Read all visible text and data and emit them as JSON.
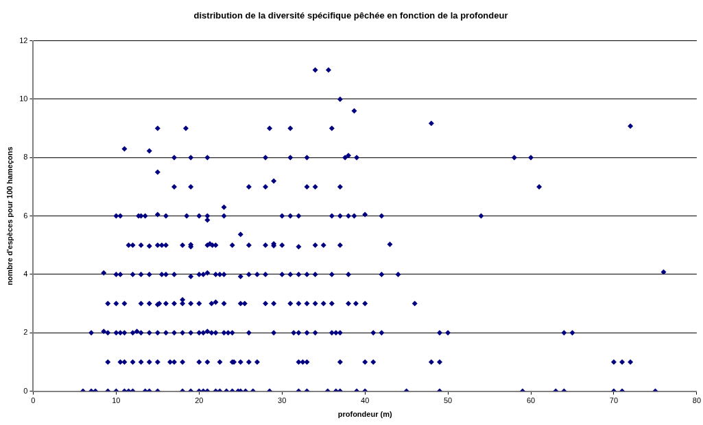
{
  "chart_data": {
    "type": "scatter",
    "title": "distribution de la diversité spécifique pêchée en fonction de la profondeur",
    "xlabel": "profondeur (m)",
    "ylabel": "nombre d'espèces pour 100 hameçons",
    "xlim": [
      0,
      80
    ],
    "xticks": [
      0,
      10,
      20,
      30,
      40,
      50,
      60,
      70,
      80
    ],
    "ylim": [
      0,
      12
    ],
    "yticks": [
      0,
      2,
      4,
      6,
      8,
      10,
      12
    ],
    "grid": "y",
    "marker": "diamond",
    "legend": false,
    "series": [
      {
        "color": "#000080",
        "x": [
          6,
          7,
          7.5,
          9,
          10,
          11,
          11.5,
          12,
          13.5,
          14,
          15,
          18,
          19,
          20,
          20.5,
          21,
          22,
          22.5,
          23.3,
          24,
          24.7,
          25,
          25.6,
          26.5,
          28.5,
          32,
          33,
          35.5,
          36.5,
          37,
          39,
          40,
          45,
          49,
          59,
          63,
          64,
          70,
          71,
          75
        ],
        "values": [
          0,
          0,
          0,
          0,
          0,
          0,
          0,
          0,
          0,
          0,
          0,
          0,
          0,
          0,
          0,
          0,
          0,
          0,
          0,
          0,
          0,
          0,
          0,
          0,
          0,
          0,
          0,
          0,
          0,
          0,
          0,
          0,
          0,
          0,
          0,
          0,
          0,
          0,
          0,
          0
        ]
      },
      {
        "color": "#000080",
        "x": [
          9,
          10.5,
          11,
          12,
          13,
          14,
          15,
          16.5,
          17,
          18,
          20,
          21,
          22.5,
          24,
          24.2,
          25,
          26,
          27,
          32,
          32.5,
          33,
          37,
          40,
          41,
          48,
          49,
          70,
          71,
          72
        ],
        "values": [
          1,
          1,
          1,
          1,
          1,
          1,
          1,
          1,
          1,
          1,
          1,
          1,
          1,
          1,
          1,
          1,
          1,
          1,
          1,
          1,
          1,
          1,
          1,
          1,
          1,
          1,
          1,
          1,
          1
        ]
      },
      {
        "color": "#000080",
        "x": [
          7,
          8.5,
          9,
          10,
          10.5,
          11,
          12,
          12.5,
          13,
          14,
          15,
          16,
          17,
          18,
          19,
          20,
          20.5,
          21,
          21.5,
          22,
          23,
          23.5,
          24,
          26,
          29,
          31.4,
          32,
          33,
          34,
          36,
          36.5,
          37,
          41,
          42,
          49,
          50,
          64,
          65
        ],
        "values": [
          2,
          2.05,
          2,
          2,
          2,
          2,
          2,
          2.05,
          2,
          2,
          2,
          2,
          2,
          2,
          2,
          2,
          2,
          2.05,
          2,
          2,
          2,
          2,
          2,
          2,
          2,
          2,
          2,
          2,
          2,
          2,
          2,
          2,
          2,
          2,
          2,
          2,
          2,
          2
        ]
      },
      {
        "color": "#000080",
        "x": [
          9,
          10,
          11,
          13,
          14,
          15,
          15.2,
          16,
          17,
          18,
          18,
          19,
          20,
          21.5,
          22,
          23,
          25,
          25.5,
          28,
          29,
          31,
          32,
          33,
          34,
          35,
          36,
          38,
          38.9,
          40,
          46
        ],
        "values": [
          3,
          3,
          3,
          3,
          3,
          2.97,
          3,
          3,
          3,
          3.13,
          3,
          3,
          3,
          3,
          3.05,
          3,
          3,
          3,
          3,
          3,
          3,
          3,
          3,
          3,
          3,
          3,
          3,
          3,
          3,
          3
        ]
      },
      {
        "color": "#000080",
        "x": [
          8.5,
          10,
          10.5,
          12,
          13,
          14,
          15.5,
          16,
          17,
          19,
          20,
          20.5,
          21,
          22,
          22.5,
          23,
          25,
          26,
          27,
          28,
          30,
          31,
          32,
          33,
          34,
          36,
          38,
          42,
          44,
          76
        ],
        "values": [
          4.05,
          4,
          4,
          4,
          4,
          4,
          4,
          4,
          4,
          3.93,
          4,
          4,
          4.05,
          4,
          4,
          4,
          3.93,
          4,
          4,
          4,
          4,
          4,
          4,
          4,
          4,
          4,
          4,
          4,
          4,
          4.08
        ]
      },
      {
        "color": "#000080",
        "x": [
          11.5,
          12,
          13,
          14,
          15,
          15.5,
          16,
          18,
          19,
          19,
          21.3,
          21,
          21.6,
          22,
          24,
          25,
          26,
          28,
          29,
          29,
          30,
          32,
          34,
          35,
          37,
          43
        ],
        "values": [
          5,
          5,
          5,
          4.97,
          5,
          5,
          5,
          5,
          4.95,
          5.02,
          5.05,
          5,
          5,
          5,
          5,
          5.37,
          5,
          5,
          5.05,
          4.98,
          5,
          4.95,
          5,
          5,
          5,
          5.03
        ]
      },
      {
        "color": "#000080",
        "x": [
          10,
          10.5,
          12.7,
          13,
          13.5,
          15,
          16,
          18.5,
          20,
          21,
          21,
          23,
          23,
          30,
          31,
          32,
          36,
          37,
          38,
          38.7,
          40,
          42,
          54
        ],
        "values": [
          6,
          6,
          6,
          6,
          6,
          6.05,
          6,
          6,
          6,
          6,
          5.86,
          6,
          6.3,
          6,
          6,
          6,
          6,
          6,
          6,
          6,
          6.05,
          6,
          6
        ]
      },
      {
        "color": "#000080",
        "x": [
          11,
          14,
          15,
          18.4,
          17,
          19,
          21,
          15,
          17,
          19,
          26,
          34,
          35.6,
          37,
          38.7,
          28.5,
          31,
          36,
          48,
          28,
          31,
          33,
          37.6,
          38,
          39,
          28,
          29,
          33,
          34,
          37,
          72,
          58,
          60,
          61
        ],
        "values": [
          8.3,
          8.23,
          9,
          9,
          8,
          8,
          8,
          7.5,
          7,
          7,
          7,
          11,
          11,
          10,
          9.6,
          9,
          9,
          9,
          9.17,
          8,
          8,
          8,
          8,
          8.07,
          8,
          7,
          7.2,
          7,
          7,
          7,
          9.08,
          8,
          8,
          7
        ]
      }
    ]
  }
}
